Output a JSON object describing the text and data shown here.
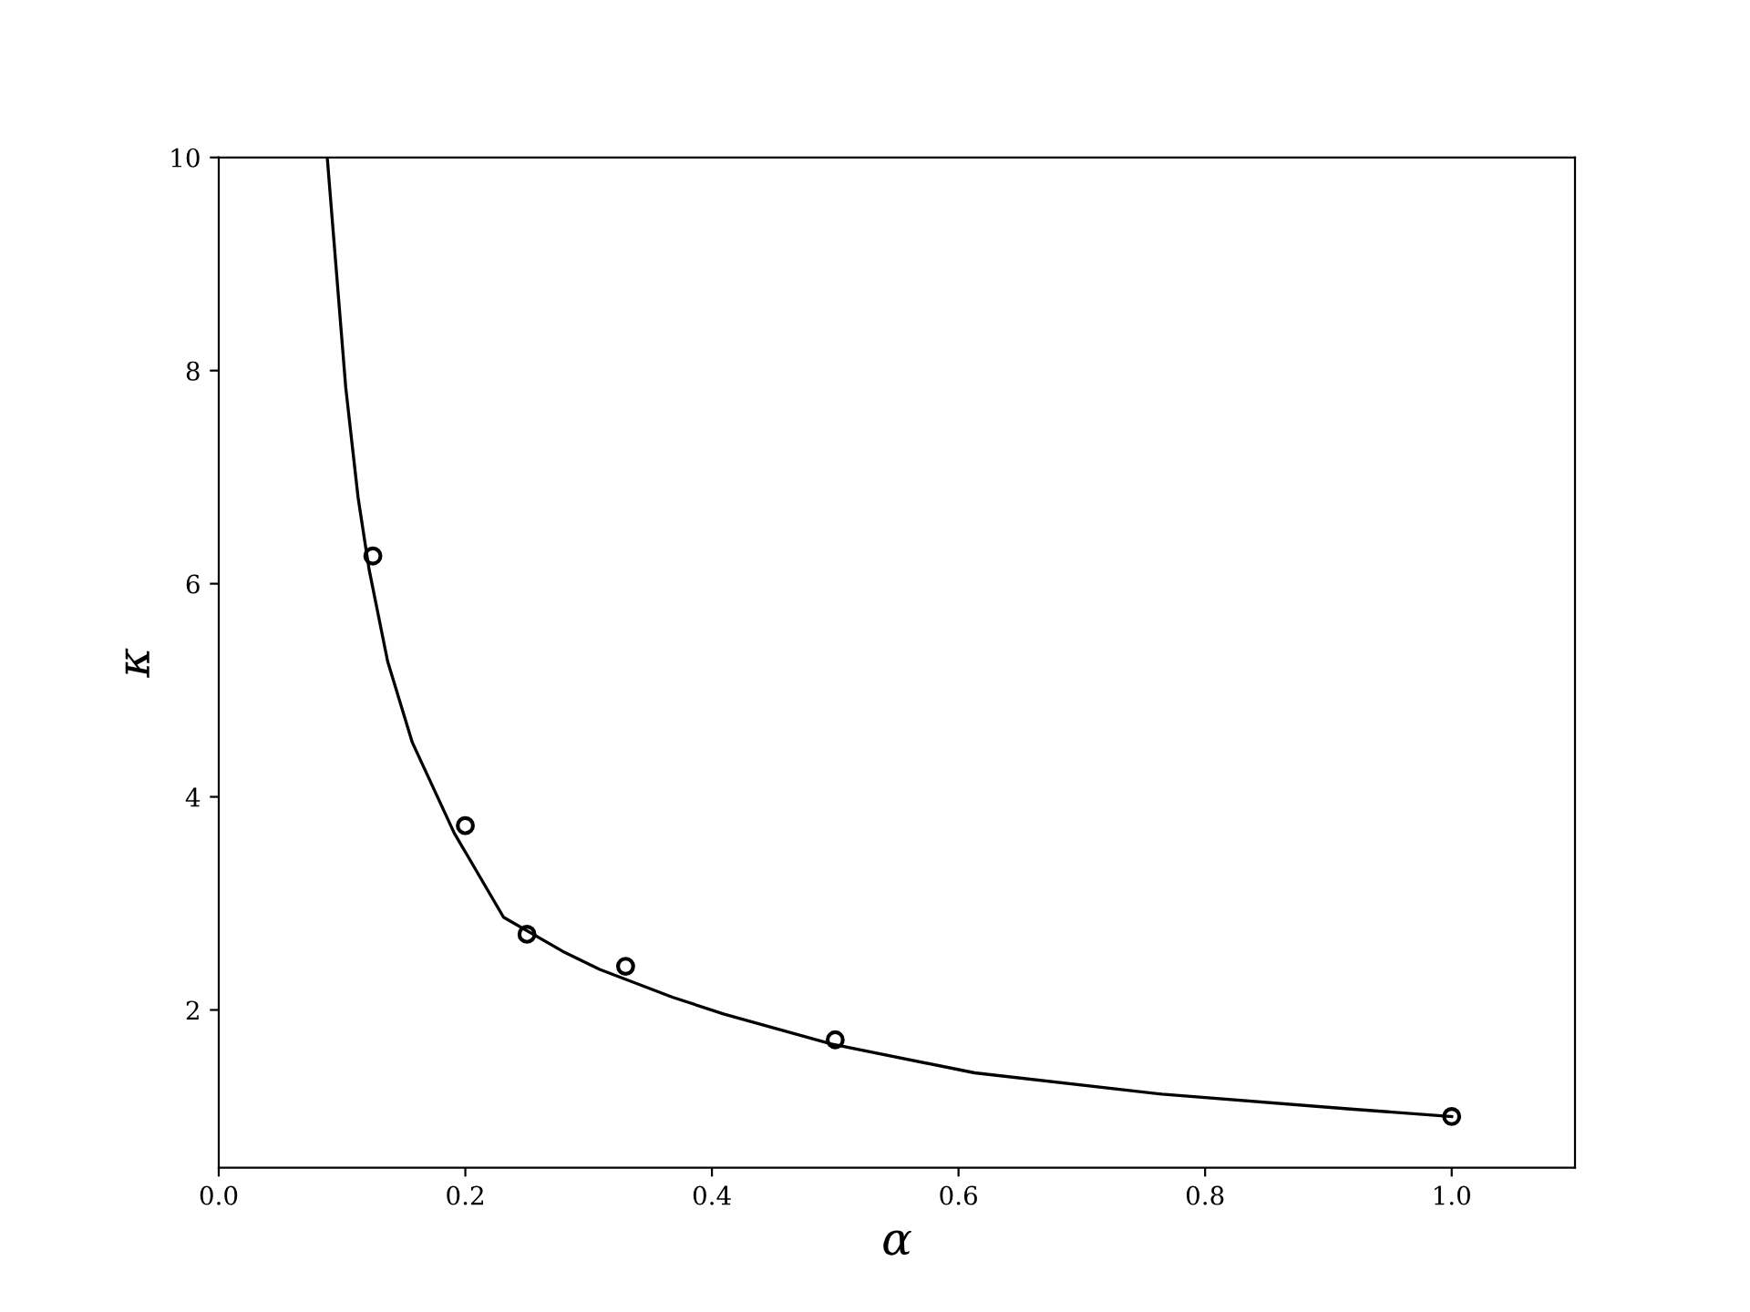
{
  "chart_data": {
    "type": "line",
    "xlabel": "α",
    "ylabel": "κ",
    "xlim": [
      0.0,
      1.1
    ],
    "ylim": [
      0.52,
      10
    ],
    "xticks": [
      {
        "value": 0,
        "label": "0.0"
      },
      0.2,
      0.4,
      0.6,
      0.8,
      {
        "value": 1,
        "label": "1.0"
      }
    ],
    "yticks": [
      2,
      4,
      6,
      8,
      10
    ],
    "grid": false,
    "legend": false,
    "series": [
      {
        "color": "#000000",
        "marker": "none",
        "line_style": "solid",
        "x": [
          0.088,
          0.103,
          0.113,
          0.122,
          0.137,
          0.157,
          0.191,
          0.231,
          0.279,
          0.309,
          0.368,
          0.41,
          0.497,
          0.613,
          0.765,
          0.918,
          1.0
        ],
        "values": [
          10,
          7.84,
          6.81,
          6.13,
          5.27,
          4.51,
          3.66,
          2.87,
          2.55,
          2.38,
          2.12,
          1.96,
          1.68,
          1.41,
          1.21,
          1.07,
          1.0
        ]
      },
      {
        "type": "scatter",
        "color": "#000000",
        "marker": "circle",
        "x": [
          0.125,
          0.2,
          0.25,
          0.33,
          0.5,
          1.0
        ],
        "values": [
          6.26,
          3.73,
          2.71,
          2.41,
          1.72,
          1.0
        ]
      }
    ]
  }
}
